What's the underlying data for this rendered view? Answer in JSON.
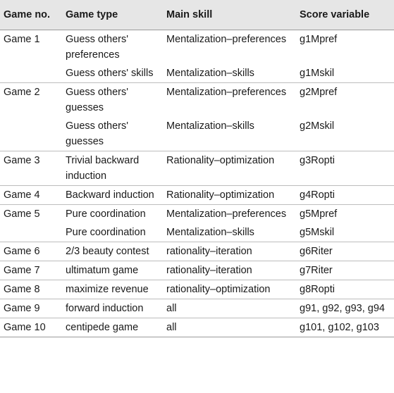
{
  "headers": [
    "Game no.",
    "Game type",
    "Main skill",
    "Score variable"
  ],
  "rows": [
    {
      "game": "Game 1",
      "type": "Guess others' preferences",
      "skill": "Mentalization–preferences",
      "score": "g1Mpref",
      "top": true
    },
    {
      "game": "",
      "type": "Guess others' skills",
      "skill": "Mentalization–skills",
      "score": "g1Mskil",
      "top": false
    },
    {
      "game": "Game 2",
      "type": "Guess others' guesses",
      "skill": "Mentalization–preferences",
      "score": "g2Mpref",
      "top": true
    },
    {
      "game": "",
      "type": "Guess others' guesses",
      "skill": "Mentalization–skills",
      "score": "g2Mskil",
      "top": false
    },
    {
      "game": "Game 3",
      "type": "Trivial backward induction",
      "skill": "Rationality–optimization",
      "score": "g3Ropti",
      "top": true
    },
    {
      "game": "Game 4",
      "type": "Backward induction",
      "skill": "Rationality–optimization",
      "score": "g4Ropti",
      "top": true
    },
    {
      "game": "Game 5",
      "type": "Pure coordination",
      "skill": "Mentalization–preferences",
      "score": "g5Mpref",
      "top": true
    },
    {
      "game": "",
      "type": "Pure coordination",
      "skill": "Mentalization–skills",
      "score": "g5Mskil",
      "top": false
    },
    {
      "game": "Game 6",
      "type": "2/3 beauty contest",
      "skill": "rationality–iteration",
      "score": "g6Riter",
      "top": true
    },
    {
      "game": "Game 7",
      "type": "ultimatum game",
      "skill": "rationality–iteration",
      "score": "g7Riter",
      "top": true
    },
    {
      "game": "Game 8",
      "type": "maximize revenue",
      "skill": "rationality–optimization",
      "score": "g8Ropti",
      "top": true
    },
    {
      "game": "Game 9",
      "type": "forward induction",
      "skill": "all",
      "score": "g91, g92, g93, g94",
      "top": true
    },
    {
      "game": "Game 10",
      "type": "centipede game",
      "skill": "all",
      "score": "g101, g102, g103",
      "top": true
    }
  ]
}
